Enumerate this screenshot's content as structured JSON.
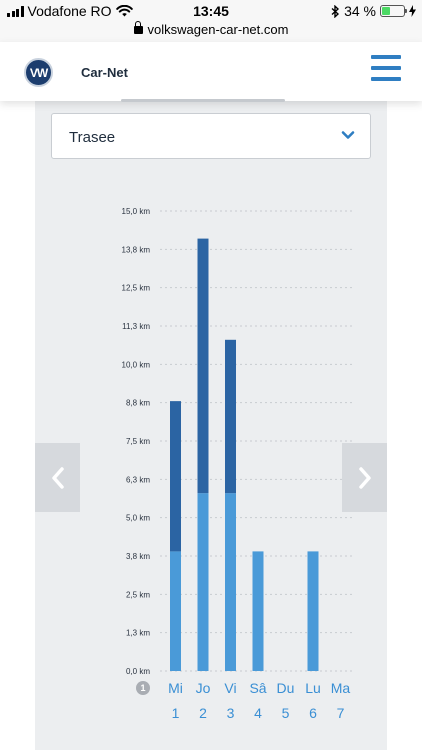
{
  "status_bar": {
    "carrier": "Vodafone RO",
    "time": "13:45",
    "battery": "34 %",
    "battery_level": 0.34
  },
  "browser": {
    "url": "volkswagen-car-net.com"
  },
  "header": {
    "logo_text": "VW",
    "brand": "Car-Net"
  },
  "filter": {
    "selected": "Trasee"
  },
  "info_badge": "1",
  "colors": {
    "accent": "#2f7ec2",
    "bar_upper": "#2b64a3",
    "bar_lower": "#4a9ad8",
    "panel": "#eceef0"
  },
  "chart_data": {
    "type": "bar",
    "stacked": true,
    "categories": [
      "Mi",
      "Jo",
      "Vi",
      "Sâ",
      "Du",
      "Lu",
      "Ma"
    ],
    "day_numbers": [
      "1",
      "2",
      "3",
      "4",
      "5",
      "6",
      "7"
    ],
    "y_ticks": [
      "0,0 km",
      "1,3 km",
      "2,5 km",
      "3,8 km",
      "5,0 km",
      "6,3 km",
      "7,5 km",
      "8,8 km",
      "10,0 km",
      "11,3 km",
      "12,5 km",
      "13,8 km",
      "15,0 km"
    ],
    "ylim": [
      0,
      15
    ],
    "series": [
      {
        "color": "#4a9ad8",
        "values": [
          3.9,
          5.8,
          5.8,
          3.9,
          0,
          3.9,
          0
        ]
      },
      {
        "color": "#2b64a3",
        "values": [
          4.9,
          8.3,
          5.0,
          0,
          0,
          0,
          0
        ]
      }
    ],
    "grid": true
  }
}
